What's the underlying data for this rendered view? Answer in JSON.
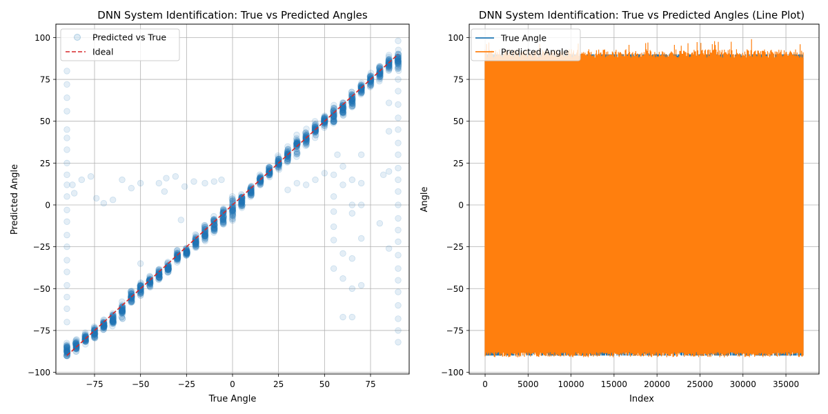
{
  "chart_data": [
    {
      "type": "scatter",
      "title": "DNN System Identification: True vs Predicted Angles",
      "xlabel": "True Angle",
      "ylabel": "Predicted Angle",
      "xlim": [
        -96,
        96
      ],
      "ylim": [
        -101,
        108
      ],
      "xticks": [
        -75,
        -50,
        -25,
        0,
        25,
        50,
        75
      ],
      "yticks": [
        -100,
        -75,
        -50,
        -25,
        0,
        25,
        50,
        75,
        100
      ],
      "xtick_labels": [
        "−75",
        "−50",
        "−25",
        "0",
        "25",
        "50",
        "75"
      ],
      "ytick_labels": [
        "−100",
        "−75",
        "−50",
        "−25",
        "0",
        "25",
        "50",
        "75",
        "100"
      ],
      "grid": true,
      "legend_position": "top-left",
      "series": [
        {
          "name": "Predicted vs True",
          "kind": "scatter",
          "color": "#1f77b4",
          "alpha": 0.12,
          "clusters": [
            {
              "x": -90,
              "center": -87,
              "spread": 5
            },
            {
              "x": -85,
              "center": -84,
              "spread": 4
            },
            {
              "x": -80,
              "center": -80,
              "spread": 4
            },
            {
              "x": -75,
              "center": -76,
              "spread": 4
            },
            {
              "x": -70,
              "center": -72,
              "spread": 4
            },
            {
              "x": -65,
              "center": -68,
              "spread": 5
            },
            {
              "x": -60,
              "center": -63,
              "spread": 5
            },
            {
              "x": -55,
              "center": -55,
              "spread": 5
            },
            {
              "x": -50,
              "center": -50,
              "spread": 5
            },
            {
              "x": -45,
              "center": -46,
              "spread": 4
            },
            {
              "x": -40,
              "center": -42,
              "spread": 4
            },
            {
              "x": -35,
              "center": -38,
              "spread": 4
            },
            {
              "x": -30,
              "center": -31,
              "spread": 4
            },
            {
              "x": -25,
              "center": -28,
              "spread": 3
            },
            {
              "x": -20,
              "center": -22,
              "spread": 5
            },
            {
              "x": -15,
              "center": -17,
              "spread": 5
            },
            {
              "x": -10,
              "center": -12,
              "spread": 6
            },
            {
              "x": -5,
              "center": -7,
              "spread": 6
            },
            {
              "x": 0,
              "center": -2,
              "spread": 8
            },
            {
              "x": 5,
              "center": 3,
              "spread": 6
            },
            {
              "x": 10,
              "center": 8,
              "spread": 5
            },
            {
              "x": 15,
              "center": 15,
              "spread": 4
            },
            {
              "x": 20,
              "center": 20,
              "spread": 4
            },
            {
              "x": 25,
              "center": 25,
              "spread": 5
            },
            {
              "x": 30,
              "center": 30,
              "spread": 6
            },
            {
              "x": 35,
              "center": 35,
              "spread": 6
            },
            {
              "x": 40,
              "center": 40,
              "spread": 5
            },
            {
              "x": 45,
              "center": 45,
              "spread": 5
            },
            {
              "x": 50,
              "center": 50,
              "spread": 4
            },
            {
              "x": 55,
              "center": 54,
              "spread": 6
            },
            {
              "x": 60,
              "center": 58,
              "spread": 5
            },
            {
              "x": 65,
              "center": 63,
              "spread": 6
            },
            {
              "x": 70,
              "center": 69,
              "spread": 5
            },
            {
              "x": 75,
              "center": 74,
              "spread": 5
            },
            {
              "x": 80,
              "center": 79,
              "spread": 5
            },
            {
              "x": 85,
              "center": 84,
              "spread": 5
            },
            {
              "x": 90,
              "center": 86,
              "spread": 6
            }
          ],
          "outliers": [
            [
              -90,
              80
            ],
            [
              -90,
              72
            ],
            [
              -90,
              64
            ],
            [
              -90,
              56
            ],
            [
              -90,
              45
            ],
            [
              -90,
              40
            ],
            [
              -90,
              33
            ],
            [
              -90,
              25
            ],
            [
              -90,
              18
            ],
            [
              -90,
              12
            ],
            [
              -90,
              5
            ],
            [
              -90,
              -3
            ],
            [
              -90,
              -10
            ],
            [
              -90,
              -18
            ],
            [
              -90,
              -25
            ],
            [
              -90,
              -33
            ],
            [
              -90,
              -40
            ],
            [
              -90,
              -48
            ],
            [
              -90,
              -55
            ],
            [
              -90,
              -62
            ],
            [
              -90,
              -70
            ],
            [
              -87,
              12
            ],
            [
              -86,
              7
            ],
            [
              -82,
              15
            ],
            [
              -77,
              17
            ],
            [
              -74,
              4
            ],
            [
              -70,
              1
            ],
            [
              -65,
              3
            ],
            [
              -60,
              15
            ],
            [
              -55,
              10
            ],
            [
              -50,
              13
            ],
            [
              -40,
              13
            ],
            [
              -37,
              8
            ],
            [
              -36,
              16
            ],
            [
              -31,
              17
            ],
            [
              -26,
              11
            ],
            [
              -21,
              14
            ],
            [
              -15,
              13
            ],
            [
              -10,
              14
            ],
            [
              -6,
              15
            ],
            [
              -28,
              -9
            ],
            [
              -50,
              -35
            ],
            [
              55,
              18
            ],
            [
              55,
              5
            ],
            [
              55,
              -4
            ],
            [
              55,
              -13
            ],
            [
              55,
              -21
            ],
            [
              55,
              -38
            ],
            [
              57,
              30
            ],
            [
              60,
              12
            ],
            [
              60,
              23
            ],
            [
              60,
              -29
            ],
            [
              60,
              -44
            ],
            [
              60,
              -67
            ],
            [
              65,
              15
            ],
            [
              65,
              0
            ],
            [
              65,
              -5
            ],
            [
              65,
              -32
            ],
            [
              65,
              -50
            ],
            [
              65,
              -67
            ],
            [
              70,
              30
            ],
            [
              70,
              13
            ],
            [
              70,
              0
            ],
            [
              70,
              -20
            ],
            [
              70,
              -48
            ],
            [
              40,
              12
            ],
            [
              45,
              15
            ],
            [
              50,
              19
            ],
            [
              30,
              9
            ],
            [
              35,
              13
            ],
            [
              80,
              -11
            ],
            [
              82,
              18
            ],
            [
              85,
              20
            ],
            [
              85,
              -26
            ],
            [
              85,
              44
            ],
            [
              85,
              61
            ],
            [
              90,
              98
            ],
            [
              90,
              75
            ],
            [
              90,
              68
            ],
            [
              90,
              60
            ],
            [
              90,
              52
            ],
            [
              90,
              45
            ],
            [
              90,
              37
            ],
            [
              90,
              30
            ],
            [
              90,
              22
            ],
            [
              90,
              15
            ],
            [
              90,
              8
            ],
            [
              90,
              0
            ],
            [
              90,
              -8
            ],
            [
              90,
              -15
            ],
            [
              90,
              -22
            ],
            [
              90,
              -30
            ],
            [
              90,
              -38
            ],
            [
              90,
              -45
            ],
            [
              90,
              -52
            ],
            [
              90,
              -60
            ],
            [
              90,
              -68
            ],
            [
              90,
              -75
            ],
            [
              90,
              -82
            ]
          ]
        },
        {
          "name": "Ideal",
          "kind": "line",
          "style": "dashed",
          "color": "#d62728",
          "x": [
            -90,
            90
          ],
          "y": [
            -90,
            90
          ]
        }
      ]
    },
    {
      "type": "line",
      "title": "DNN System Identification: True vs Predicted Angles (Line Plot)",
      "xlabel": "Index",
      "ylabel": "Angle",
      "xlim": [
        -1850,
        38850
      ],
      "ylim": [
        -101,
        108
      ],
      "xticks": [
        0,
        5000,
        10000,
        15000,
        20000,
        25000,
        30000,
        35000
      ],
      "yticks": [
        -100,
        -75,
        -50,
        -25,
        0,
        25,
        50,
        75,
        100
      ],
      "xtick_labels": [
        "0",
        "5000",
        "10000",
        "15000",
        "20000",
        "25000",
        "30000",
        "35000"
      ],
      "ytick_labels": [
        "−100",
        "−75",
        "−50",
        "−25",
        "0",
        "25",
        "50",
        "75",
        "100"
      ],
      "grid": true,
      "legend_position": "top-left",
      "n_points": 37000,
      "series": [
        {
          "name": "True Angle",
          "color": "#1f77b4",
          "min": -90,
          "max": 90
        },
        {
          "name": "Predicted Angle",
          "color": "#ff7f0e",
          "min": -91,
          "max": 99
        }
      ]
    }
  ]
}
